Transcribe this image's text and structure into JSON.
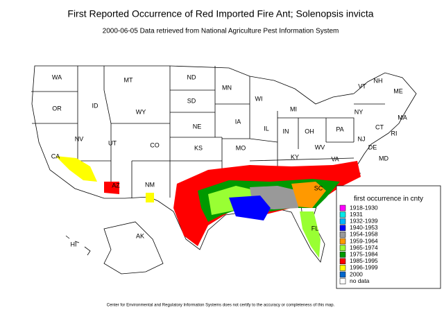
{
  "header": {
    "title": "First Reported Occurrence of Red Imported Fire Ant; Solenopsis invicta",
    "subtitle": "2000-06-05 Data retrieved from National Agriculture Pest Information System"
  },
  "map": {
    "state_labels": [
      "WA",
      "OR",
      "ID",
      "MT",
      "WY",
      "ND",
      "SD",
      "NE",
      "MN",
      "WI",
      "MI",
      "IA",
      "IL",
      "IN",
      "OH",
      "PA",
      "NY",
      "VT",
      "NH",
      "ME",
      "MA",
      "CT",
      "RI",
      "NJ",
      "DE",
      "MD",
      "WV",
      "VA",
      "KY",
      "MO",
      "KS",
      "CO",
      "UT",
      "NV",
      "CA",
      "AZ",
      "NM",
      "AK",
      "HI",
      "SC",
      "FL"
    ]
  },
  "legend": {
    "title": "first occurrence in cnty",
    "entries": [
      {
        "label": "1918-1930",
        "color": "#ff00ff"
      },
      {
        "label": "1931",
        "color": "#00e8e8"
      },
      {
        "label": "1932-1939",
        "color": "#00b4ff"
      },
      {
        "label": "1940-1953",
        "color": "#0000ff"
      },
      {
        "label": "1954-1958",
        "color": "#999999"
      },
      {
        "label": "1959-1964",
        "color": "#ff9900"
      },
      {
        "label": "1965-1974",
        "color": "#99ff33"
      },
      {
        "label": "1975-1984",
        "color": "#009900"
      },
      {
        "label": "1985-1995",
        "color": "#ff0000"
      },
      {
        "label": "1996-1999",
        "color": "#ffff00"
      },
      {
        "label": "2000",
        "color": "#0066cc"
      },
      {
        "label": "no data",
        "color": "#ffffff"
      }
    ]
  },
  "footer": {
    "note": "Center for Environmental and Regulatory Information Systems does not certify to the accuracy or completeness of this map."
  }
}
